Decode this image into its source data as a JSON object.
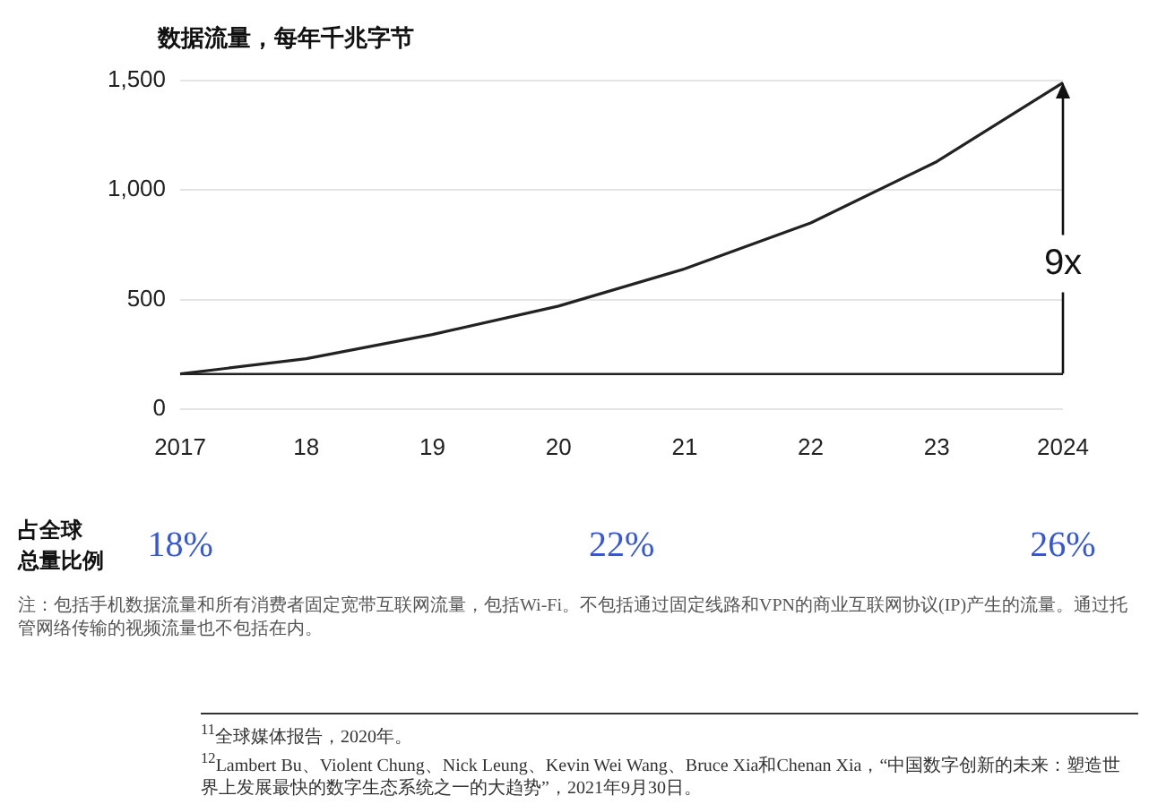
{
  "chart_data": {
    "type": "line",
    "title": "数据流量，每年千兆字节",
    "categories": [
      "2017",
      "18",
      "19",
      "20",
      "21",
      "22",
      "23",
      "2024"
    ],
    "series": [
      {
        "color": "#222222",
        "values": [
          160,
          230,
          340,
          470,
          640,
          850,
          1130,
          1490
        ]
      }
    ],
    "ylim": [
      0,
      1500
    ],
    "yticks": [
      0,
      500,
      {
        "value": 1000,
        "label": "1,000"
      },
      {
        "value": 1500,
        "label": "1,500"
      }
    ],
    "grid": "y",
    "legend": false,
    "marker": "none",
    "line_style": "solid",
    "ref_lines": [
      {
        "axis": "y",
        "value": 160,
        "color": "#222222"
      }
    ],
    "annotations": [
      "9x",
      "占全球总量比例",
      "18%",
      "22%",
      "26%",
      "注：包括手机数据流量和所有消费者固定宽带互联网流量，包括Wi-Fi。不包括通过固定线路和VPN的商业互联网协议(IP)产生的流量。通过托管网络传输的视频流量也不包括在内。",
      "$^{11}$全球媒体报告，2020年。",
      "$^{12}$Lambert Bu、Violent Chung、Nick Leung、Kevin Wei Wang、Bruce Xia和Chenan Xia，“中国数字创新的未来：塑造世界上发展最快的数字生态系统之一的大趋势”，2021年9月30日。"
    ]
  }
}
